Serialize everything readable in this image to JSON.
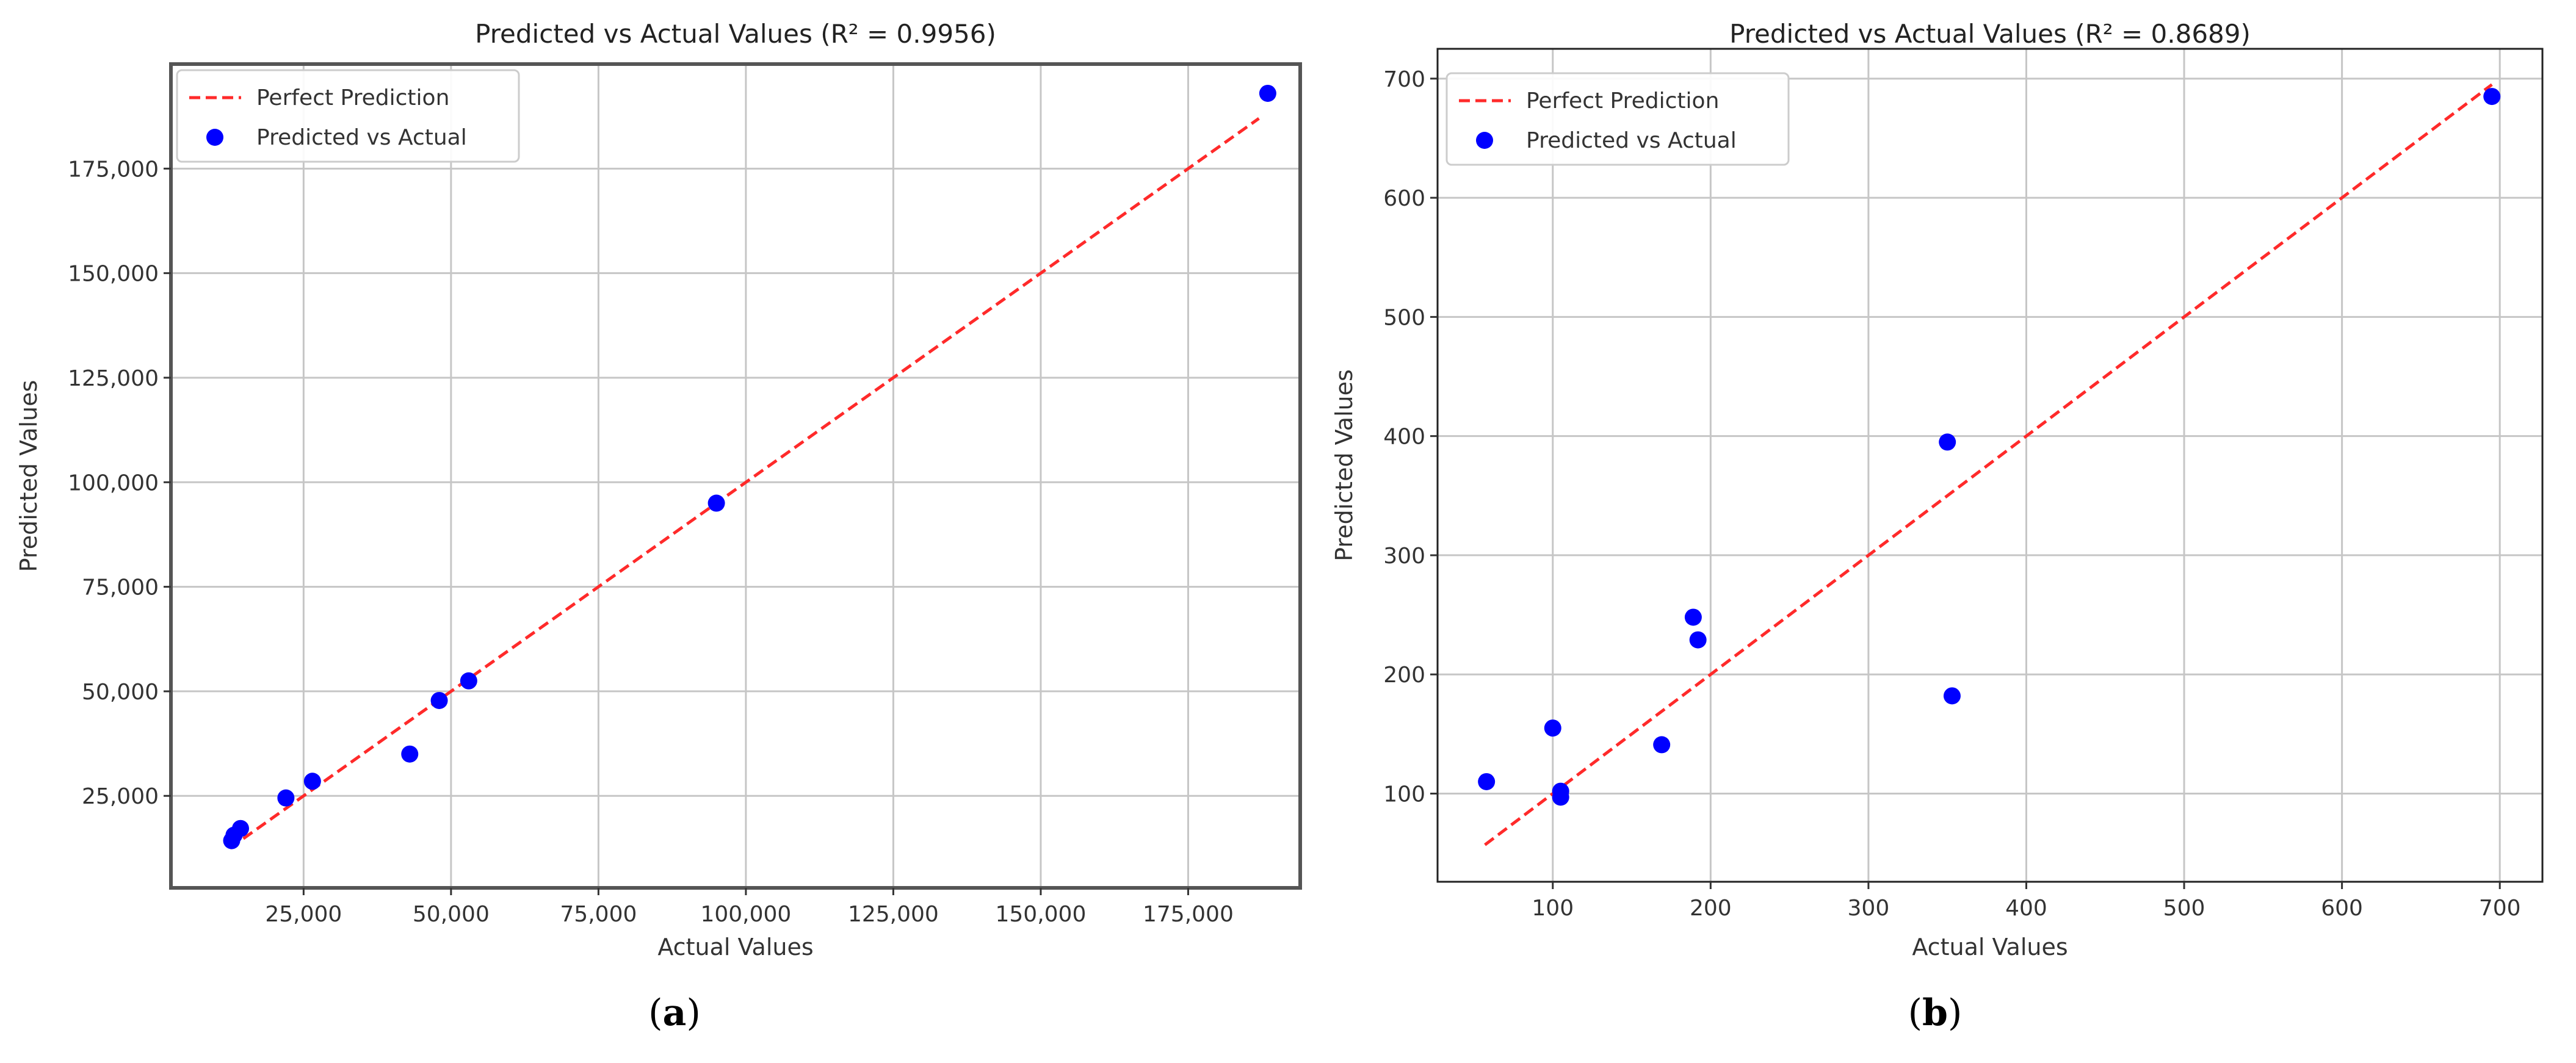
{
  "panels": [
    {
      "caption_open": "(",
      "caption_letter": "a",
      "caption_close": ")"
    },
    {
      "caption_open": "(",
      "caption_letter": "b",
      "caption_close": ")"
    }
  ],
  "chart_data": [
    {
      "type": "scatter",
      "title": "Predicted vs Actual Values (R² = 0.9956)",
      "xlabel": "Actual Values",
      "ylabel": "Predicted Values",
      "xlim": [
        2500,
        194000
      ],
      "ylim": [
        3000,
        200000
      ],
      "xticks": [
        25000,
        50000,
        75000,
        100000,
        125000,
        150000,
        175000
      ],
      "xtick_labels": [
        "25,000",
        "50,000",
        "75,000",
        "100,000",
        "125,000",
        "150,000",
        "175,000"
      ],
      "yticks": [
        25000,
        50000,
        75000,
        100000,
        125000,
        150000,
        175000
      ],
      "ytick_labels": [
        "25,000",
        "50,000",
        "75,000",
        "100,000",
        "125,000",
        "150,000",
        "175,000"
      ],
      "grid": true,
      "legend_position": "top-left",
      "legend": [
        "Perfect Prediction",
        "Predicted vs Actual"
      ],
      "line": {
        "name": "Perfect Prediction",
        "x": [
          12500,
          187000
        ],
        "y": [
          12500,
          187000
        ],
        "color": "#ff2a2a",
        "style": "dashed"
      },
      "series": [
        {
          "name": "Predicted vs Actual",
          "color": "#0000ff",
          "x": [
            12800,
            13200,
            14300,
            22000,
            26500,
            43000,
            48000,
            53000,
            95000,
            188500
          ],
          "y": [
            14300,
            15600,
            17200,
            24500,
            28500,
            35000,
            47800,
            52500,
            95000,
            193000
          ]
        }
      ]
    },
    {
      "type": "scatter",
      "title": "Predicted vs Actual Values (R² = 0.8689)",
      "xlabel": "Actual Values",
      "ylabel": "Predicted Values",
      "xlim": [
        27,
        727
      ],
      "ylim": [
        26,
        725
      ],
      "xticks": [
        100,
        200,
        300,
        400,
        500,
        600,
        700
      ],
      "xtick_labels": [
        "100",
        "200",
        "300",
        "400",
        "500",
        "600",
        "700"
      ],
      "yticks": [
        100,
        200,
        300,
        400,
        500,
        600,
        700
      ],
      "ytick_labels": [
        "100",
        "200",
        "300",
        "400",
        "500",
        "600",
        "700"
      ],
      "grid": true,
      "legend_position": "top-left",
      "legend": [
        "Perfect Prediction",
        "Predicted vs Actual"
      ],
      "line": {
        "name": "Perfect Prediction",
        "x": [
          57,
          695
        ],
        "y": [
          57,
          695
        ],
        "color": "#ff2a2a",
        "style": "dashed"
      },
      "series": [
        {
          "name": "Predicted vs Actual",
          "color": "#0000ff",
          "x": [
            58,
            100,
            105,
            105,
            169,
            189,
            192,
            350,
            353,
            695
          ],
          "y": [
            110,
            155,
            102,
            97,
            141,
            248,
            229,
            395,
            182,
            685
          ]
        }
      ]
    }
  ]
}
